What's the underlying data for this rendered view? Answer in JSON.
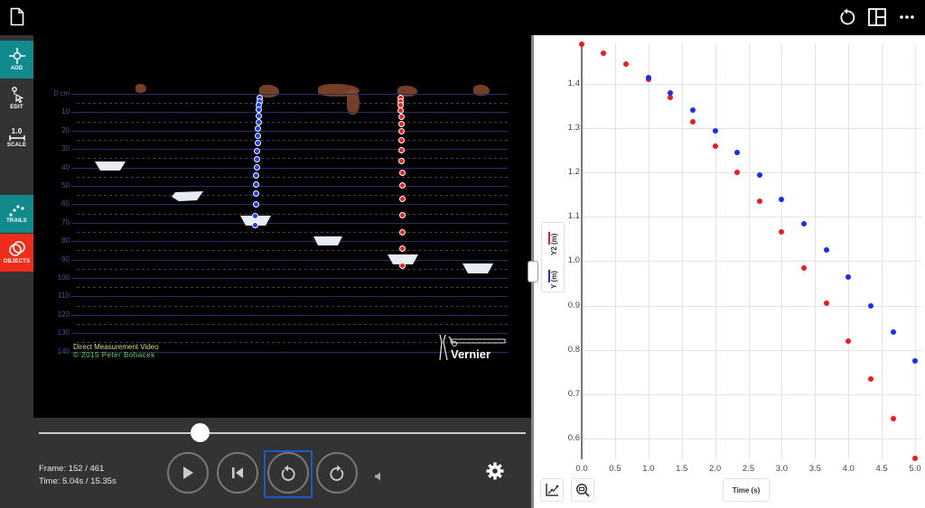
{
  "topbar": {
    "icons": [
      "document-icon",
      "reset-icon",
      "layout-icon",
      "more-icon"
    ]
  },
  "sidebar": {
    "items": [
      {
        "label": "ADD",
        "icon": "crosshair-add-icon",
        "color": "#118a8e"
      },
      {
        "label": "EDIT",
        "icon": "pointer-edit-icon",
        "color": "#333333"
      },
      {
        "label": "SCALE",
        "icon": "scale-ruler-icon",
        "value": "1.0",
        "color": "#333333"
      },
      {
        "label": "TRAILS",
        "icon": "trails-dots-icon",
        "color": "#118a8e"
      },
      {
        "label": "OBJECTS",
        "icon": "objects-circles-icon",
        "color": "#f02c1a"
      }
    ]
  },
  "video": {
    "ruler_labels": [
      "0 cm",
      "10",
      "20",
      "30",
      "40",
      "50",
      "60",
      "70",
      "80",
      "90",
      "100",
      "110",
      "120",
      "130",
      "140"
    ],
    "credit_line1": "Direct Measurement Video",
    "credit_line2": "© 2015 Peter Bohacek",
    "brand": "Vernier",
    "trail_colors": {
      "blue": "#1f3cf0",
      "red": "#f0201a"
    }
  },
  "controls": {
    "frame_label": "Frame: 152 / 461",
    "time_label": "Time: 5.04s / 15.35s",
    "slider_position": 0.33,
    "buttons": [
      "play-button",
      "step-back-button",
      "rewind-button",
      "forward-button"
    ],
    "accent": "#1c59c9"
  },
  "graph": {
    "legend": [
      {
        "label": "Y2 (m)",
        "color": "#f01a1a"
      },
      {
        "label": "Y (m)",
        "color": "#1a2cf0"
      }
    ],
    "xlabel": "Time (s)"
  },
  "chart_data": {
    "type": "scatter",
    "title": "",
    "xlabel": "Time (s)",
    "ylabel": "Y (m) / Y2 (m)",
    "xlim": [
      0.0,
      5.0
    ],
    "ylim": [
      0.55,
      1.49
    ],
    "x_ticks": [
      "0.0",
      "0.5",
      "1.0",
      "1.5",
      "2.0",
      "2.5",
      "3.0",
      "3.5",
      "4.0",
      "4.5",
      "5.0"
    ],
    "y_ticks": [
      "1.4",
      "1.3",
      "1.2",
      "1.1",
      "1.0",
      "0.9",
      "0.8",
      "0.7",
      "0.6"
    ],
    "grid": true,
    "legend_position": "left",
    "series": [
      {
        "name": "Y2 (m)",
        "color": "#f01a1a",
        "x": [
          0.0,
          0.33,
          0.67,
          1.0,
          1.33,
          1.67,
          2.0,
          2.33,
          2.67,
          3.0,
          3.33,
          3.67,
          4.0,
          4.33,
          4.67,
          5.0
        ],
        "y": [
          1.49,
          1.47,
          1.445,
          1.41,
          1.37,
          1.315,
          1.26,
          1.2,
          1.135,
          1.065,
          0.985,
          0.905,
          0.82,
          0.735,
          0.645,
          0.555
        ]
      },
      {
        "name": "Y (m)",
        "color": "#1a2cf0",
        "x": [
          1.0,
          1.33,
          1.67,
          2.0,
          2.33,
          2.67,
          3.0,
          3.33,
          3.67,
          4.0,
          4.33,
          4.67,
          5.0
        ],
        "y": [
          1.415,
          1.38,
          1.34,
          1.295,
          1.245,
          1.195,
          1.14,
          1.085,
          1.025,
          0.965,
          0.9,
          0.84,
          0.775
        ]
      }
    ]
  }
}
